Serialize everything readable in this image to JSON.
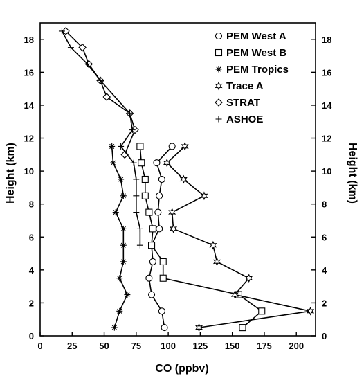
{
  "chart_data": {
    "type": "line",
    "xlabel": "CO (ppbv)",
    "ylabel": "Height (km)",
    "ylabel_right": "Height (km)",
    "xlim": [
      0,
      215
    ],
    "ylim": [
      0,
      19
    ],
    "x_ticks": [
      0,
      25,
      50,
      75,
      100,
      125,
      150,
      175,
      200
    ],
    "y_ticks": [
      0,
      2,
      4,
      6,
      8,
      10,
      12,
      14,
      16,
      18
    ],
    "grid": false,
    "legend_position": "top-right",
    "series": [
      {
        "name": "PEM West A",
        "marker": "circle",
        "points": [
          [
            97,
            0.5
          ],
          [
            95,
            1.5
          ],
          [
            87,
            2.5
          ],
          [
            85,
            3.5
          ],
          [
            88,
            4.5
          ],
          [
            87,
            5.5
          ],
          [
            93,
            6.5
          ],
          [
            92,
            7.5
          ],
          [
            93,
            8.5
          ],
          [
            95,
            9.5
          ],
          [
            91,
            10.5
          ],
          [
            103,
            11.5
          ]
        ]
      },
      {
        "name": "PEM West B",
        "marker": "square",
        "points": [
          [
            158,
            0.5
          ],
          [
            173,
            1.5
          ],
          [
            155,
            2.5
          ],
          [
            96,
            3.5
          ],
          [
            96,
            4.5
          ],
          [
            87,
            5.5
          ],
          [
            88,
            6.5
          ],
          [
            85,
            7.5
          ],
          [
            82,
            8.5
          ],
          [
            82,
            9.5
          ],
          [
            79,
            10.5
          ],
          [
            78,
            11.5
          ]
        ]
      },
      {
        "name": "PEM Tropics",
        "marker": "asterisk",
        "points": [
          [
            58,
            0.5
          ],
          [
            62,
            1.5
          ],
          [
            68,
            2.5
          ],
          [
            62,
            3.5
          ],
          [
            65,
            4.5
          ],
          [
            65,
            5.5
          ],
          [
            65,
            6.5
          ],
          [
            59,
            7.5
          ],
          [
            65,
            8.5
          ],
          [
            63,
            9.5
          ],
          [
            57,
            10.5
          ],
          [
            56,
            11.5
          ]
        ]
      },
      {
        "name": "Trace A",
        "marker": "star",
        "points": [
          [
            124,
            0.5
          ],
          [
            211,
            1.5
          ],
          [
            152,
            2.5
          ],
          [
            163,
            3.5
          ],
          [
            138,
            4.5
          ],
          [
            135,
            5.5
          ],
          [
            104,
            6.5
          ],
          [
            103,
            7.5
          ],
          [
            128,
            8.5
          ],
          [
            112,
            9.5
          ],
          [
            99,
            10.5
          ],
          [
            113,
            11.5
          ]
        ]
      },
      {
        "name": "STRAT",
        "marker": "diamond",
        "points": [
          [
            66,
            11
          ],
          [
            74,
            12.5
          ],
          [
            70,
            13.5
          ],
          [
            52,
            14.5
          ],
          [
            47,
            15.5
          ],
          [
            38,
            16.5
          ],
          [
            33,
            17.5
          ],
          [
            20,
            18.5
          ]
        ]
      },
      {
        "name": "ASHOE",
        "marker": "plus",
        "points": [
          [
            78,
            5.5
          ],
          [
            78,
            6.5
          ],
          [
            75,
            7.5
          ],
          [
            75,
            8.5
          ],
          [
            75,
            9.5
          ],
          [
            73,
            10.5
          ],
          [
            63,
            11.5
          ],
          [
            72,
            12.5
          ],
          [
            70,
            13.5
          ],
          [
            47,
            15.5
          ],
          [
            37,
            16.5
          ],
          [
            24,
            17.5
          ],
          [
            17,
            18.5
          ]
        ]
      }
    ]
  }
}
